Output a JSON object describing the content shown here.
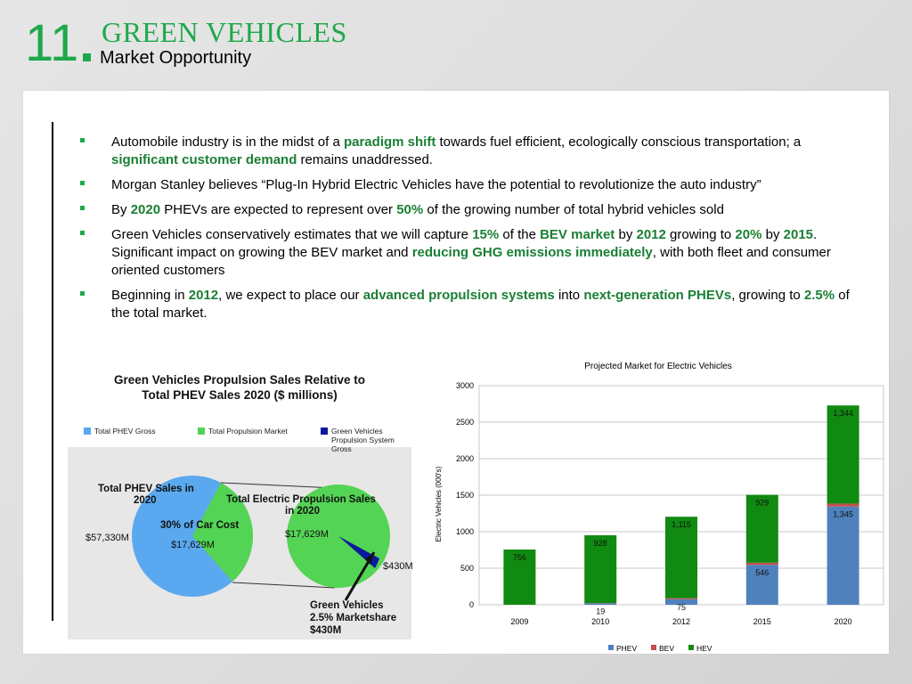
{
  "header": {
    "slide_number": "11.",
    "brand": "GREEN VEHICLES",
    "subtitle": "Market Opportunity"
  },
  "bullets": [
    {
      "segments": [
        {
          "t": "Automobile industry is in the midst of a ",
          "s": ""
        },
        {
          "t": "paradigm shift",
          "s": "b"
        },
        {
          "t": " towards fuel efficient, ecologically conscious transportation; a ",
          "s": ""
        },
        {
          "t": "significant customer demand",
          "s": "b"
        },
        {
          "t": " remains unaddressed.",
          "s": ""
        }
      ]
    },
    {
      "segments": [
        {
          "t": "Morgan Stanley believes “Plug-In Hybrid Electric Vehicles have the potential to revolutionize the auto industry”",
          "s": ""
        }
      ]
    },
    {
      "segments": [
        {
          "t": "By ",
          "s": ""
        },
        {
          "t": "2020",
          "s": "b"
        },
        {
          "t": " PHEVs are expected to represent over ",
          "s": ""
        },
        {
          "t": "50%",
          "s": "b"
        },
        {
          "t": " of the growing number of total hybrid vehicles sold",
          "s": ""
        }
      ]
    },
    {
      "segments": [
        {
          "t": "Green Vehicles conservatively estimates that we will capture ",
          "s": ""
        },
        {
          "t": "15%",
          "s": "b"
        },
        {
          "t": " of the ",
          "s": ""
        },
        {
          "t": "BEV market",
          "s": "b"
        },
        {
          "t": " by ",
          "s": ""
        },
        {
          "t": "2012",
          "s": "b"
        },
        {
          "t": " growing to ",
          "s": ""
        },
        {
          "t": "20%",
          "s": "b"
        },
        {
          "t": " by ",
          "s": ""
        },
        {
          "t": "2015",
          "s": "b"
        },
        {
          "t": ".  Significant impact on growing the BEV market and ",
          "s": ""
        },
        {
          "t": "reducing GHG emissions immediately",
          "s": "b"
        },
        {
          "t": ", with both fleet and consumer oriented customers",
          "s": ""
        }
      ]
    },
    {
      "segments": [
        {
          "t": "Beginning in ",
          "s": ""
        },
        {
          "t": "2012",
          "s": "b"
        },
        {
          "t": ", we expect to place our ",
          "s": ""
        },
        {
          "t": "advanced propulsion systems",
          "s": "b"
        },
        {
          "t": " into ",
          "s": ""
        },
        {
          "t": "next-generation PHEVs",
          "s": "b"
        },
        {
          "t": ", growing to ",
          "s": ""
        },
        {
          "t": "2.5%",
          "s": "b"
        },
        {
          "t": " of the total market.",
          "s": ""
        }
      ]
    }
  ],
  "infographic": {
    "title_line1": "Green Vehicles Propulsion Sales Relative to",
    "title_line2": "Total PHEV Sales 2020 ($ millions)",
    "legend": [
      {
        "label": "Total PHEV Gross",
        "color": "#5aa9f0"
      },
      {
        "label": "Total Propulsion Market",
        "color": "#54d454"
      },
      {
        "label": "Green Vehicles Propulsion System Gross",
        "color": "#0a1a9c"
      }
    ],
    "left_pie": {
      "label_line1": "Total PHEV Sales in",
      "label_line2": "2020",
      "phev_value": "$57,330M",
      "slice_label": "30% of Car Cost",
      "slice_value": "$17,629M"
    },
    "right_pie": {
      "label_line1": "Total Electric Propulsion Sales",
      "label_line2": "in 2020",
      "value": "$17,629M",
      "slice_value": "$430M"
    },
    "callout": {
      "line1": "Green Vehicles",
      "line2": "2.5% Marketshare",
      "line3": "$430M"
    }
  },
  "chart_data": {
    "type": "bar",
    "stacked": true,
    "title": "Projected Market  for Electric Vehicles",
    "ylabel": "Electric Vehicles (000's)",
    "xlabel": "",
    "ylim": [
      0,
      3000
    ],
    "yticks": [
      "0",
      "500",
      "1000",
      "1500",
      "2000",
      "2500",
      "3000"
    ],
    "categories": [
      "2009",
      "2010",
      "2012",
      "2015",
      "2020"
    ],
    "series": [
      {
        "name": "PHEV",
        "color": "#4f81bd",
        "values": [
          0,
          19,
          75,
          546,
          1345
        ],
        "labels": [
          "",
          "19",
          "75",
          "546",
          "1,345"
        ]
      },
      {
        "name": "BEV",
        "color": "#c0504d",
        "values": [
          0,
          4,
          15,
          30,
          40
        ],
        "labels": [
          "",
          "",
          "",
          "",
          ""
        ]
      },
      {
        "name": "HEV",
        "color": "#118a11",
        "values": [
          756,
          928,
          1115,
          929,
          1344
        ],
        "labels": [
          "756",
          "928",
          "1,115",
          "929",
          "1,344"
        ]
      }
    ],
    "legend_position": "bottom",
    "grid": true
  }
}
